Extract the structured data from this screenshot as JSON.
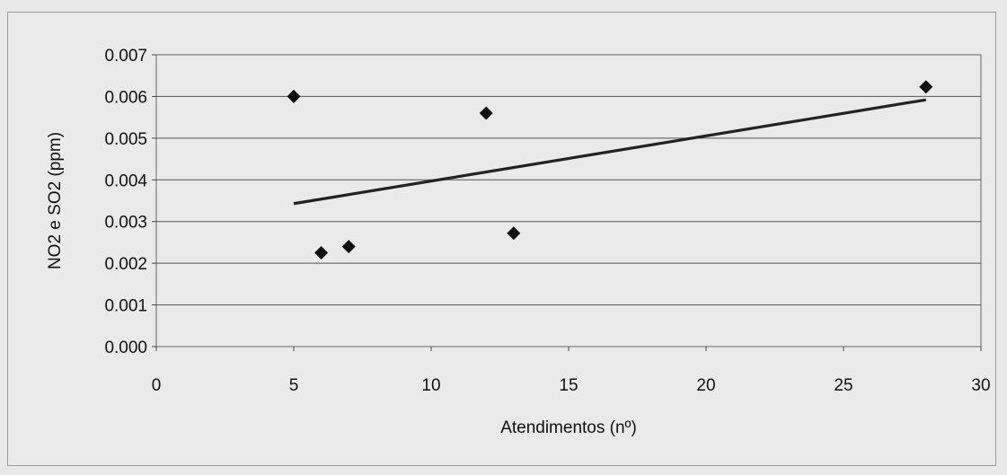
{
  "chart_data": {
    "type": "scatter",
    "title": "",
    "xlabel": "Atendimentos (nº)",
    "ylabel": "NO2 e SO2 (ppm)",
    "xlim": [
      0,
      30
    ],
    "ylim": [
      0,
      0.007
    ],
    "x_ticks": [
      "0",
      "5",
      "10",
      "15",
      "20",
      "25",
      "30"
    ],
    "y_ticks": [
      "0.000",
      "0.001",
      "0.002",
      "0.003",
      "0.004",
      "0.005",
      "0.006",
      "0.007"
    ],
    "grid": "horizontal",
    "legend": "none",
    "series": [
      {
        "marker": "diamond",
        "color": "#111111",
        "points": [
          {
            "x": 5,
            "y": 0.006
          },
          {
            "x": 6,
            "y": 0.00225
          },
          {
            "x": 7,
            "y": 0.0024
          },
          {
            "x": 12,
            "y": 0.0056
          },
          {
            "x": 13,
            "y": 0.00272
          },
          {
            "x": 28,
            "y": 0.00623
          }
        ]
      }
    ],
    "trendline": {
      "type": "linear",
      "color": "#222222",
      "start": {
        "x": 5,
        "y": 0.00343
      },
      "end": {
        "x": 28,
        "y": 0.00592
      }
    }
  }
}
